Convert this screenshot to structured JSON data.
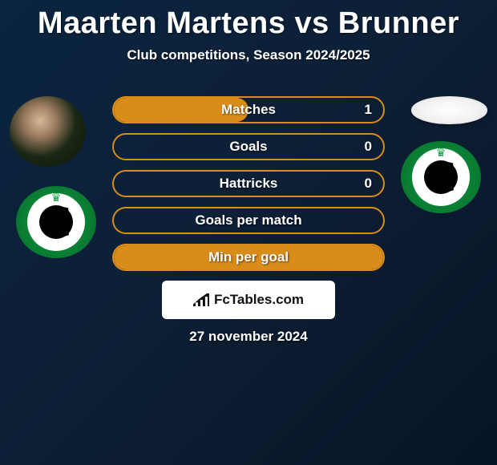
{
  "title": "Maarten Martens vs Brunner",
  "subtitle": "Club competitions, Season 2024/2025",
  "date": "27 november 2024",
  "fctables_label": "FcTables.com",
  "colors": {
    "bar_border": "#d98c1a",
    "bar_fill": "#d98c1a",
    "title_color": "#ffffff",
    "badge_green": "#0d9b3f",
    "badge_white": "#ffffff",
    "badge_black": "#000000"
  },
  "stats": [
    {
      "label": "Matches",
      "value": "1",
      "fill_side": "left",
      "fill_pct": 50
    },
    {
      "label": "Goals",
      "value": "0",
      "fill_side": "none",
      "fill_pct": 0
    },
    {
      "label": "Hattricks",
      "value": "0",
      "fill_side": "none",
      "fill_pct": 0
    },
    {
      "label": "Goals per match",
      "value": "",
      "fill_side": "none",
      "fill_pct": 0
    },
    {
      "label": "Min per goal",
      "value": "",
      "fill_side": "full",
      "fill_pct": 100
    }
  ]
}
